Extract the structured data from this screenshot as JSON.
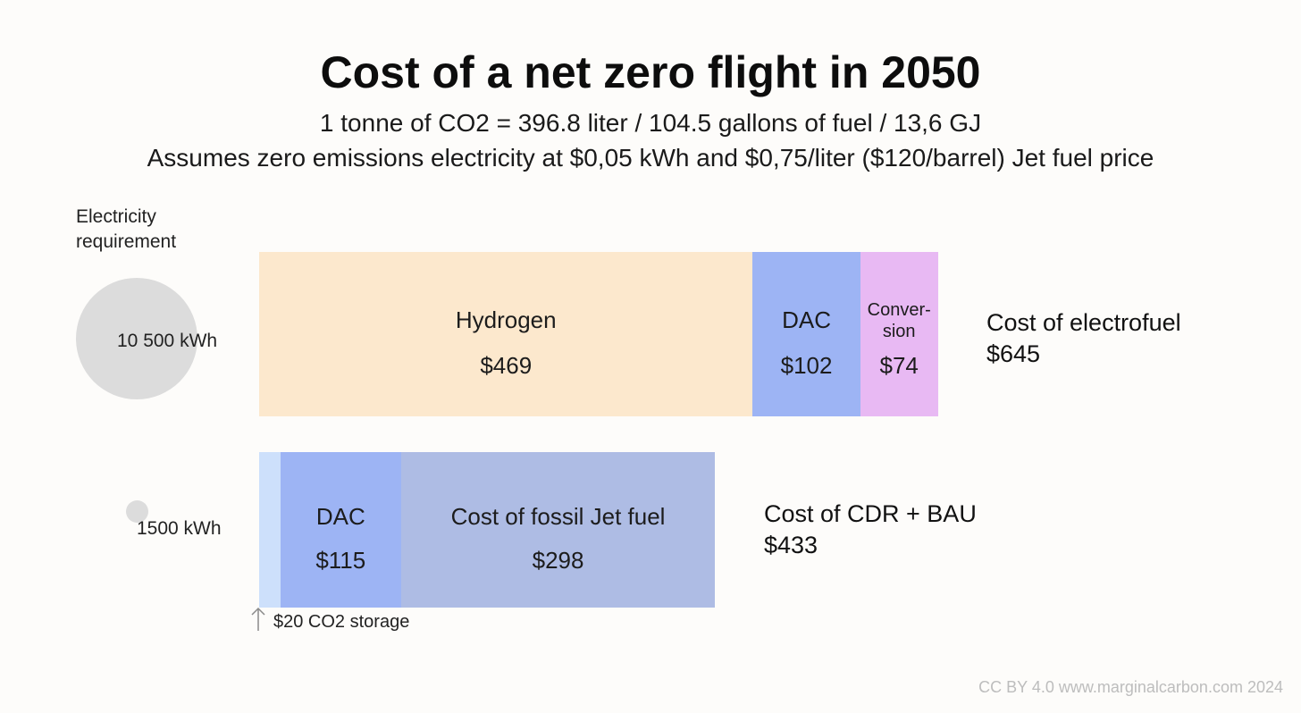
{
  "chart_data": {
    "type": "bar",
    "orientation": "horizontal-stacked",
    "title": "Cost of a net zero flight in 2050",
    "subtitle_line1": "1 tonne of CO2 = 396.8 liter / 104.5 gallons of fuel / 13,6 GJ",
    "subtitle_line2": "Assumes zero emissions electricity at $0,05 kWh and $0,75/liter ($120/barrel) Jet fuel price",
    "electricity_header": "Electricity requirement",
    "bars": [
      {
        "name": "electrofuel",
        "electricity_kwh": 10500,
        "electricity_label": "10 500 kWh",
        "segments": [
          {
            "label": "Hydrogen",
            "value": 469,
            "value_label": "$469",
            "color": "#fce8cd"
          },
          {
            "label": "DAC",
            "value": 102,
            "value_label": "$102",
            "color": "#9db4f4"
          },
          {
            "label": "Conver-\nsion",
            "value": 74,
            "value_label": "$74",
            "color": "#e8b9f3"
          }
        ],
        "total_label": "Cost of electrofuel",
        "total_value": "$645"
      },
      {
        "name": "cdr_bau",
        "electricity_kwh": 1500,
        "electricity_label": "1500 kWh",
        "segments": [
          {
            "label": "",
            "value": 20,
            "value_label": "",
            "color": "#cde0fb"
          },
          {
            "label": "DAC",
            "value": 115,
            "value_label": "$115",
            "color": "#9db4f4"
          },
          {
            "label": "Cost of fossil Jet fuel",
            "value": 298,
            "value_label": "$298",
            "color": "#aebce4"
          }
        ],
        "total_label": "Cost of CDR + BAU",
        "total_value": "$433"
      }
    ],
    "annotations": {
      "co2_storage": "$20 CO2 storage"
    },
    "credit": "CC BY 4.0  www.marginalcarbon.com 2024"
  }
}
